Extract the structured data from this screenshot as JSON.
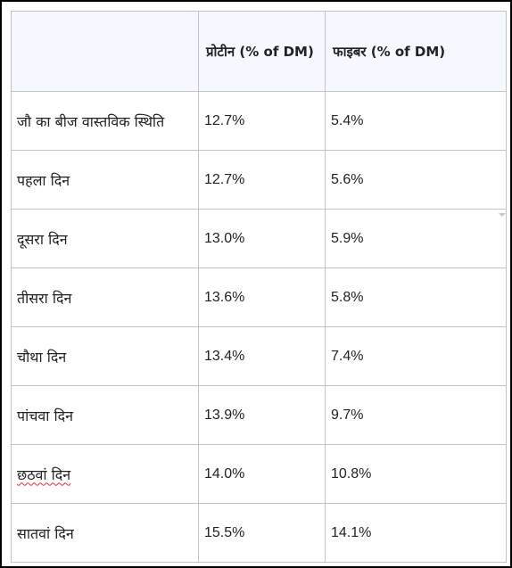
{
  "table": {
    "headers": [
      "",
      "प्रोटीन (% of DM)",
      "फाइबर  (% of DM)"
    ],
    "rows": [
      {
        "label": "जौ का बीज वास्तविक स्थिति",
        "protein": "12.7%",
        "fiber": "5.4%"
      },
      {
        "label": "पहला दिन",
        "protein": "12.7%",
        "fiber": "5.6%"
      },
      {
        "label": "दूसरा दिन",
        "protein": "13.0%",
        "fiber": "5.9%"
      },
      {
        "label": "तीसरा दिन",
        "protein": "13.6%",
        "fiber": "5.8%"
      },
      {
        "label": "चौथा दिन",
        "protein": "13.4%",
        "fiber": "7.4%"
      },
      {
        "label": "पांचवा दिन",
        "protein": "13.9%",
        "fiber": "9.7%"
      },
      {
        "label": "छठवां दिन",
        "protein": "14.0%",
        "fiber": "10.8%"
      },
      {
        "label": "सातवां दिन",
        "protein": "15.5%",
        "fiber": "14.1%"
      }
    ]
  },
  "colors": {
    "header_bg": "#f5f8ff",
    "border": "#c4c4c4",
    "frame": "#000000",
    "spellcheck": "#e03030"
  },
  "icons": {
    "dropdown": "chevron-down-icon"
  }
}
